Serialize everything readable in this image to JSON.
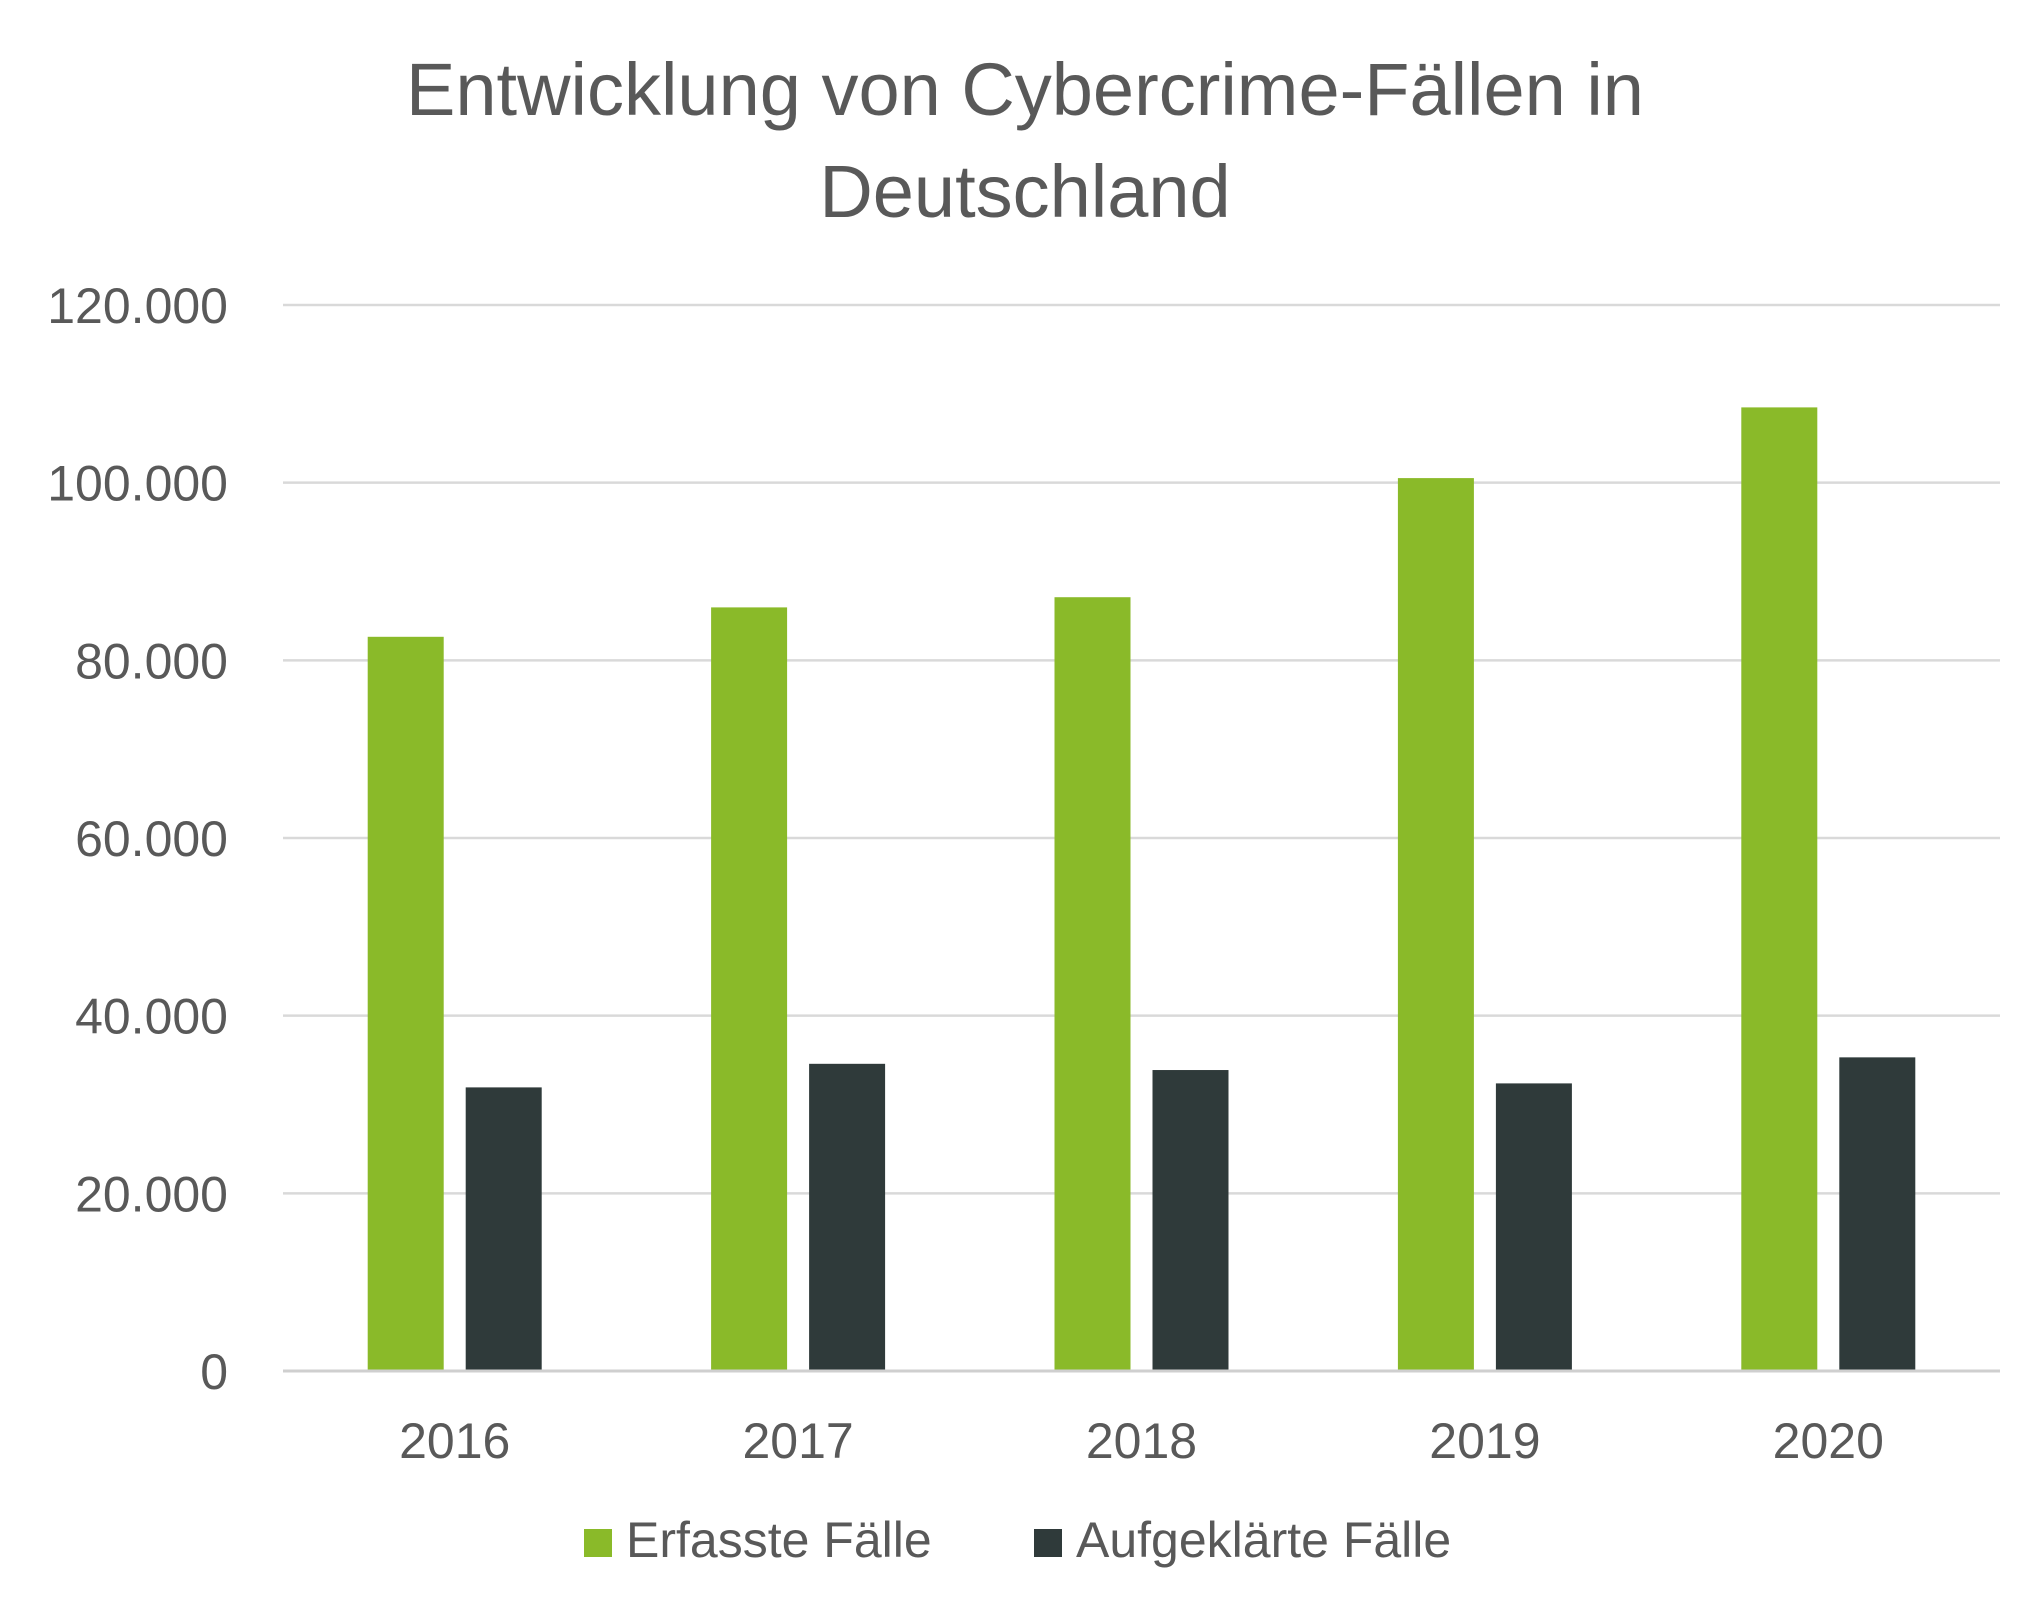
{
  "chart_data": {
    "type": "bar",
    "title_lines": [
      "Entwicklung von Cybercrime-Fällen in",
      "Deutschland"
    ],
    "categories": [
      "2016",
      "2017",
      "2018",
      "2019",
      "2020"
    ],
    "series": [
      {
        "name": "Erfasste Fälle",
        "color": "#8aba29",
        "values": [
          82649,
          85960,
          87106,
          100514,
          108474
        ]
      },
      {
        "name": "Aufgeklärte Fälle",
        "color": "#2f3a3a",
        "values": [
          31926,
          34580,
          33880,
          32376,
          35307
        ]
      }
    ],
    "ylim": [
      0,
      120000
    ],
    "yticks": [
      0,
      20000,
      40000,
      60000,
      80000,
      100000,
      120000
    ],
    "ytick_labels": [
      "0",
      "20.000",
      "40.000",
      "60.000",
      "80.000",
      "100.000",
      "120.000"
    ],
    "grid": true,
    "legend_position": "bottom"
  }
}
